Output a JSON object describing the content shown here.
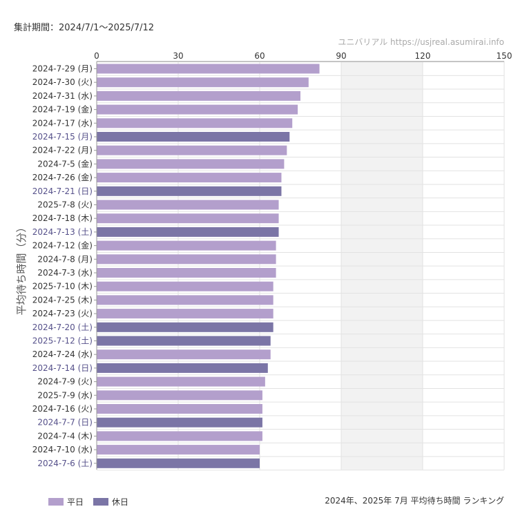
{
  "header": {
    "period": "集計期間：2024/7/1～2025/7/12",
    "source": "ユニバリアル  https://usjreal.asumirai.info"
  },
  "footer": {
    "title": "2024年、2025年 7月 平均待ち時間 ランキング"
  },
  "legend": {
    "items": [
      {
        "label": "平日",
        "color": "#b39fcc"
      },
      {
        "label": "休日",
        "color": "#7b75a6"
      }
    ]
  },
  "colors": {
    "weekday": "#b39fcc",
    "holiday": "#7b75a6",
    "weekday_label": "#333333",
    "holiday_label": "#55508a",
    "shade": "#f2f2f2",
    "grid": "#e2e2e2"
  },
  "chart_data": {
    "type": "bar",
    "orientation": "horizontal",
    "ylabel": "平均待ち時間（分）",
    "xlim": [
      0,
      150
    ],
    "xticks": [
      0,
      30,
      60,
      90,
      120,
      150
    ],
    "xtick_labels": [
      "0",
      "30",
      "60",
      "90",
      "120",
      "150"
    ],
    "shaded_range": [
      90,
      120
    ],
    "grid": true,
    "legend_position": "bottom-left",
    "categories": [
      "2024-7-29 (月)",
      "2024-7-30 (火)",
      "2024-7-31 (水)",
      "2024-7-19 (金)",
      "2024-7-17 (水)",
      "2024-7-15 (月)",
      "2024-7-22 (月)",
      "2024-7-5 (金)",
      "2024-7-26 (金)",
      "2024-7-21 (日)",
      "2025-7-8 (火)",
      "2024-7-18 (木)",
      "2024-7-13 (土)",
      "2024-7-12 (金)",
      "2024-7-8 (月)",
      "2024-7-3 (水)",
      "2025-7-10 (木)",
      "2024-7-25 (木)",
      "2024-7-23 (火)",
      "2024-7-20 (土)",
      "2025-7-12 (土)",
      "2024-7-24 (水)",
      "2024-7-14 (日)",
      "2024-7-9 (火)",
      "2025-7-9 (水)",
      "2024-7-16 (火)",
      "2024-7-7 (日)",
      "2024-7-4 (木)",
      "2024-7-10 (水)",
      "2024-7-6 (土)"
    ],
    "values": [
      82,
      78,
      75,
      74,
      72,
      71,
      70,
      69,
      68,
      68,
      67,
      67,
      67,
      66,
      66,
      66,
      65,
      65,
      65,
      65,
      64,
      64,
      63,
      62,
      61,
      61,
      61,
      61,
      60,
      60
    ],
    "day_type": [
      "平日",
      "平日",
      "平日",
      "平日",
      "平日",
      "休日",
      "平日",
      "平日",
      "平日",
      "休日",
      "平日",
      "平日",
      "休日",
      "平日",
      "平日",
      "平日",
      "平日",
      "平日",
      "平日",
      "休日",
      "休日",
      "平日",
      "休日",
      "平日",
      "平日",
      "平日",
      "休日",
      "平日",
      "平日",
      "休日"
    ]
  }
}
